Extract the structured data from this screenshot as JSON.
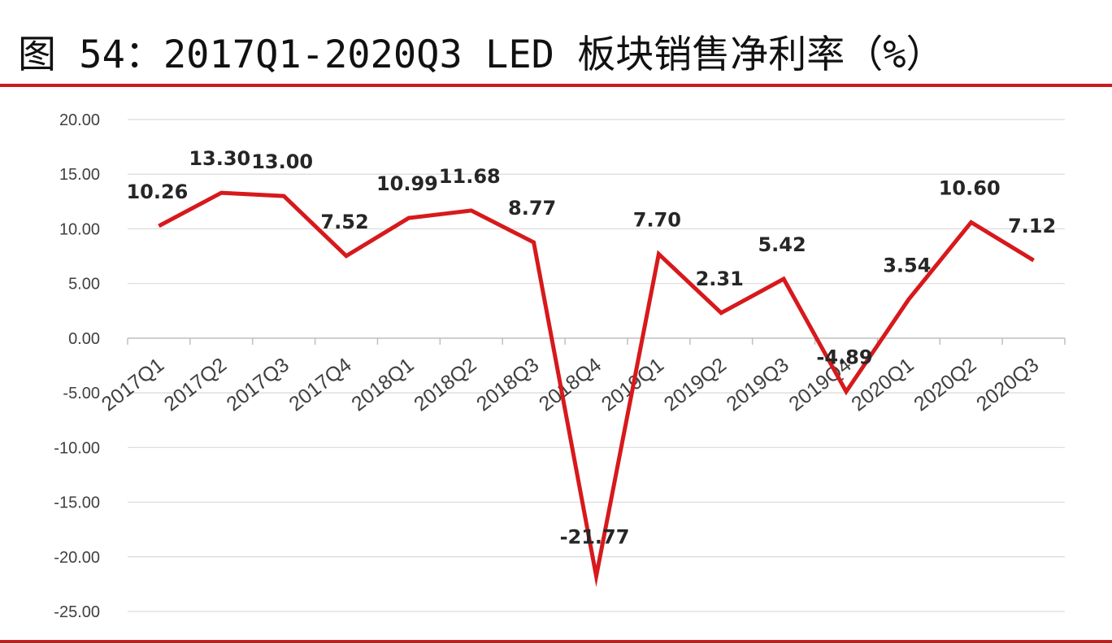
{
  "title": "图 54：2017Q1-2020Q3 LED 板块销售净利率（%）",
  "chart_data": {
    "type": "line",
    "title": "图 54：2017Q1-2020Q3 LED 板块销售净利率（%）",
    "xlabel": "",
    "ylabel": "",
    "categories": [
      "2017Q1",
      "2017Q2",
      "2017Q3",
      "2017Q4",
      "2018Q1",
      "2018Q2",
      "2018Q3",
      "2018Q4",
      "2019Q1",
      "2019Q2",
      "2019Q3",
      "2019Q4",
      "2020Q1",
      "2020Q2",
      "2020Q3"
    ],
    "series": [
      {
        "values": [
          10.26,
          13.3,
          13.0,
          7.52,
          10.99,
          11.68,
          8.77,
          -21.77,
          7.7,
          2.31,
          5.42,
          -4.89,
          3.54,
          10.6,
          7.12
        ]
      }
    ],
    "data_labels": [
      "10.26",
      "13.30",
      "13.00",
      "7.52",
      "10.99",
      "11.68",
      "8.77",
      "-21.77",
      "7.70",
      "2.31",
      "5.42",
      "-4.89",
      "3.54",
      "10.60",
      "7.12"
    ],
    "y_ticks": [
      "20.00",
      "15.00",
      "10.00",
      "5.00",
      "0.00",
      "-5.00",
      "-10.00",
      "-15.00",
      "-20.00",
      "-25.00"
    ],
    "ylim": [
      -25,
      20
    ],
    "grid": true,
    "legend": "none",
    "line_color": "#d7191c"
  }
}
